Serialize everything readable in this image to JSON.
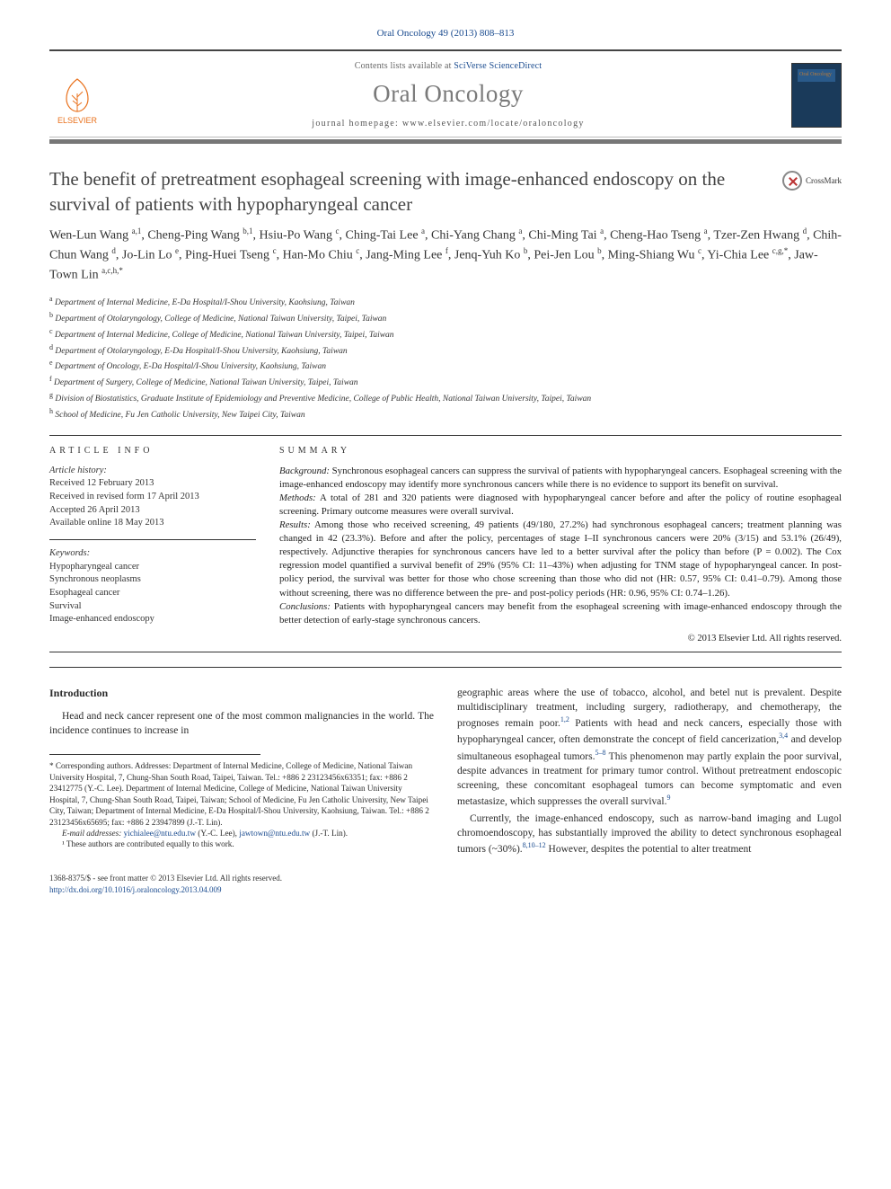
{
  "citation": "Oral Oncology 49 (2013) 808–813",
  "banner": {
    "contents_prefix": "Contents lists available at ",
    "contents_link": "SciVerse ScienceDirect",
    "journal": "Oral Oncology",
    "homepage_prefix": "journal homepage: ",
    "homepage_url": "www.elsevier.com/locate/oraloncology",
    "publisher_logo_label": "ELSEVIER",
    "cover_label": "Oral Oncology"
  },
  "crossmark_label": "CrossMark",
  "title": "The benefit of pretreatment esophageal screening with image-enhanced endoscopy on the survival of patients with hypopharyngeal cancer",
  "authors_html": "Wen-Lun Wang <sup>a,1</sup>, Cheng-Ping Wang <sup>b,1</sup>, Hsiu-Po Wang <sup>c</sup>, Ching-Tai Lee <sup>a</sup>, Chi-Yang Chang <sup>a</sup>, Chi-Ming Tai <sup>a</sup>, Cheng-Hao Tseng <sup>a</sup>, Tzer-Zen Hwang <sup>d</sup>, Chih-Chun Wang <sup>d</sup>, Jo-Lin Lo <sup>e</sup>, Ping-Huei Tseng <sup>c</sup>, Han-Mo Chiu <sup>c</sup>, Jang-Ming Lee <sup>f</sup>, Jenq-Yuh Ko <sup>b</sup>, Pei-Jen Lou <sup>b</sup>, Ming-Shiang Wu <sup>c</sup>, Yi-Chia Lee <sup>c,g,*</sup>, Jaw-Town Lin <sup>a,c,h,*</sup>",
  "affiliations": [
    {
      "key": "a",
      "text": "Department of Internal Medicine, E-Da Hospital/I-Shou University, Kaohsiung, Taiwan"
    },
    {
      "key": "b",
      "text": "Department of Otolaryngology, College of Medicine, National Taiwan University, Taipei, Taiwan"
    },
    {
      "key": "c",
      "text": "Department of Internal Medicine, College of Medicine, National Taiwan University, Taipei, Taiwan"
    },
    {
      "key": "d",
      "text": "Department of Otolaryngology, E-Da Hospital/I-Shou University, Kaohsiung, Taiwan"
    },
    {
      "key": "e",
      "text": "Department of Oncology, E-Da Hospital/I-Shou University, Kaohsiung, Taiwan"
    },
    {
      "key": "f",
      "text": "Department of Surgery, College of Medicine, National Taiwan University, Taipei, Taiwan"
    },
    {
      "key": "g",
      "text": "Division of Biostatistics, Graduate Institute of Epidemiology and Preventive Medicine, College of Public Health, National Taiwan University, Taipei, Taiwan"
    },
    {
      "key": "h",
      "text": "School of Medicine, Fu Jen Catholic University, New Taipei City, Taiwan"
    }
  ],
  "article_info": {
    "heading": "ARTICLE INFO",
    "history_label": "Article history:",
    "history": [
      "Received 12 February 2013",
      "Received in revised form 17 April 2013",
      "Accepted 26 April 2013",
      "Available online 18 May 2013"
    ],
    "keywords_label": "Keywords:",
    "keywords": [
      "Hypopharyngeal cancer",
      "Synchronous neoplasms",
      "Esophageal cancer",
      "Survival",
      "Image-enhanced endoscopy"
    ]
  },
  "summary": {
    "heading": "SUMMARY",
    "background_label": "Background:",
    "background": "Synchronous esophageal cancers can suppress the survival of patients with hypopharyngeal cancers. Esophageal screening with the image-enhanced endoscopy may identify more synchronous cancers while there is no evidence to support its benefit on survival.",
    "methods_label": "Methods:",
    "methods": "A total of 281 and 320 patients were diagnosed with hypopharyngeal cancer before and after the policy of routine esophageal screening. Primary outcome measures were overall survival.",
    "results_label": "Results:",
    "results": "Among those who received screening, 49 patients (49/180, 27.2%) had synchronous esophageal cancers; treatment planning was changed in 42 (23.3%). Before and after the policy, percentages of stage I–II synchronous cancers were 20% (3/15) and 53.1% (26/49), respectively. Adjunctive therapies for synchronous cancers have led to a better survival after the policy than before (P = 0.002). The Cox regression model quantified a survival benefit of 29% (95% CI: 11–43%) when adjusting for TNM stage of hypopharyngeal cancer. In post-policy period, the survival was better for those who chose screening than those who did not (HR: 0.57, 95% CI: 0.41–0.79). Among those without screening, there was no difference between the pre- and post-policy periods (HR: 0.96, 95% CI: 0.74–1.26).",
    "conclusions_label": "Conclusions:",
    "conclusions": "Patients with hypopharyngeal cancers may benefit from the esophageal screening with image-enhanced endoscopy through the better detection of early-stage synchronous cancers.",
    "copyright": "© 2013 Elsevier Ltd. All rights reserved."
  },
  "intro": {
    "heading": "Introduction",
    "para1": "Head and neck cancer represent one of the most common malignancies in the world. The incidence continues to increase in",
    "para2a": "geographic areas where the use of tobacco, alcohol, and betel nut is prevalent. Despite multidisciplinary treatment, including surgery, radiotherapy, and chemotherapy, the prognoses remain poor.",
    "ref12": "1,2",
    "para2b": " Patients with head and neck cancers, especially those with hypopharyngeal cancer, often demonstrate the concept of field cancerization,",
    "ref34": "3,4",
    "para2c": " and develop simultaneous esophageal tumors.",
    "ref58": "5–8",
    "para2d": " This phenomenon may partly explain the poor survival, despite advances in treatment for primary tumor control. Without pretreatment endoscopic screening, these concomitant esophageal tumors can become symptomatic and even metastasize, which suppresses the overall survival.",
    "ref9": "9",
    "para3a": "Currently, the image-enhanced endoscopy, such as narrow-band imaging and Lugol chromoendoscopy, has substantially improved the ability to detect synchronous esophageal tumors (~30%).",
    "ref81012": "8,10–12",
    "para3b": " However, despites the potential to alter treatment"
  },
  "footnotes": {
    "corr_label": "* Corresponding authors. Addresses: Department of Internal Medicine, College of Medicine, National Taiwan University Hospital, 7, Chung-Shan South Road, Taipei, Taiwan. Tel.: +886 2 23123456x63351; fax: +886 2 23412775 (Y.-C. Lee). Department of Internal Medicine, College of Medicine, National Taiwan University Hospital, 7, Chung-Shan South Road, Taipei, Taiwan; School of Medicine, Fu Jen Catholic University, New Taipei City, Taiwan; Department of Internal Medicine, E-Da Hospital/I-Shou University, Kaohsiung, Taiwan. Tel.: +886 2 23123456x65695; fax: +886 2 23947899 (J.-T. Lin).",
    "email_label": "E-mail addresses:",
    "email1": "yichialee@ntu.edu.tw",
    "email1_who": " (Y.-C. Lee), ",
    "email2": "jawtown@ntu.edu.tw",
    "email2_who": " (J.-T. Lin).",
    "note1": "¹ These authors are contributed equally to this work."
  },
  "bottom": {
    "left1": "1368-8375/$ - see front matter © 2013 Elsevier Ltd. All rights reserved.",
    "left2": "http://dx.doi.org/10.1016/j.oraloncology.2013.04.009"
  },
  "colors": {
    "link": "#1a4b8f",
    "accent": "#e9711c",
    "rule": "#333333"
  }
}
